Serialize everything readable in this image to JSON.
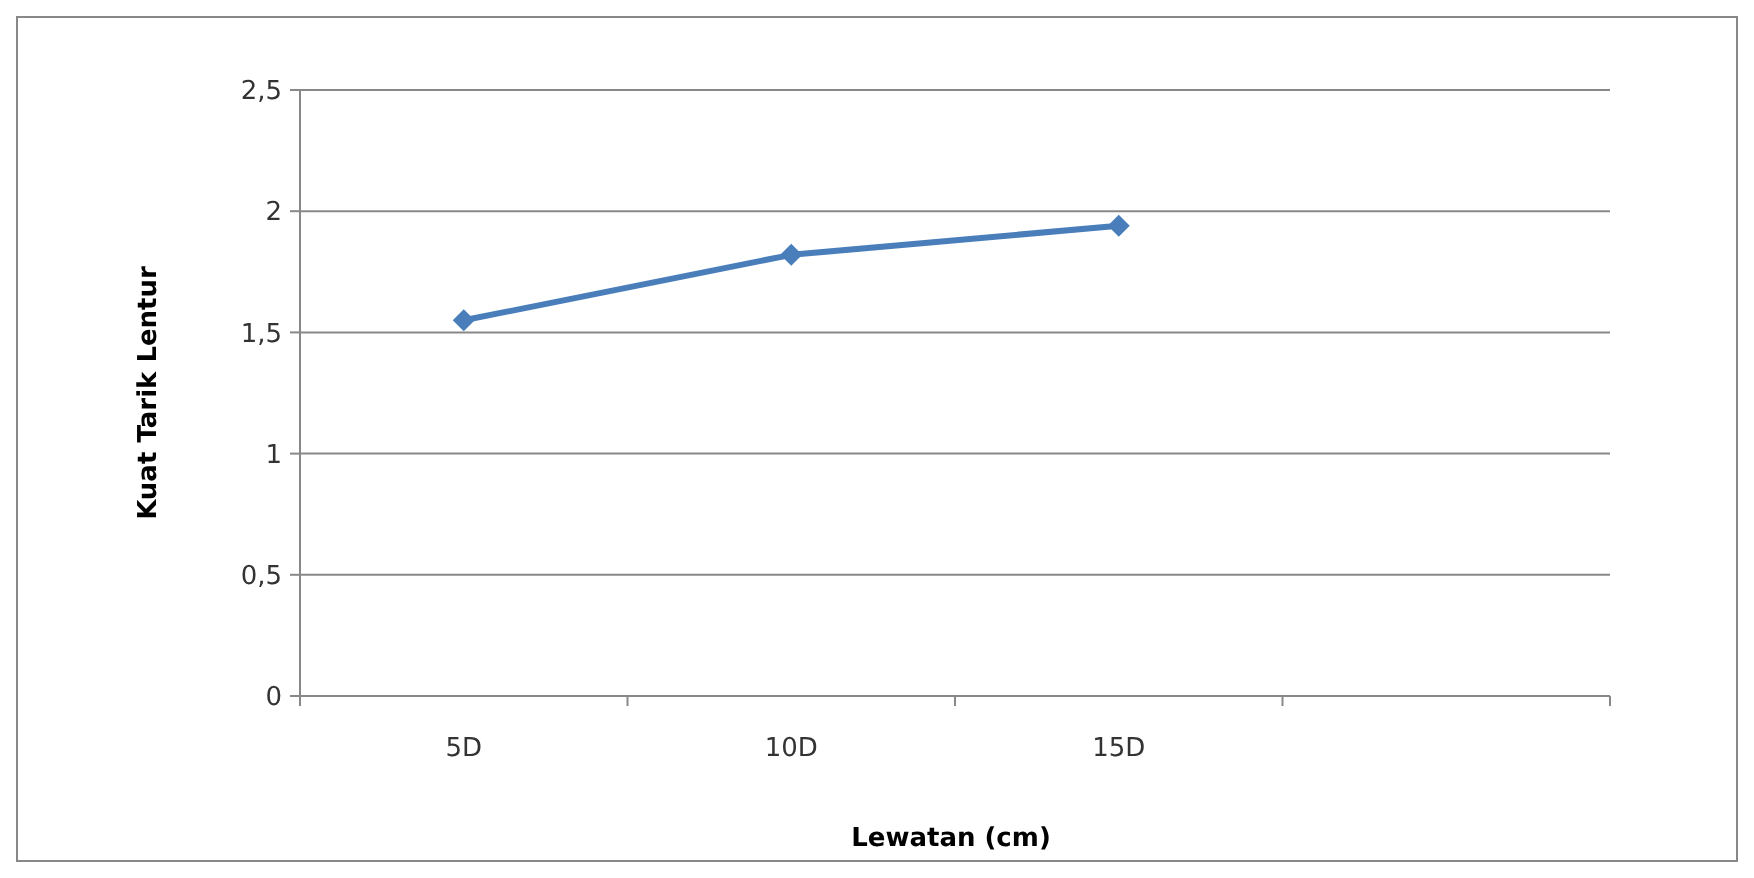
{
  "chart_data": {
    "type": "line",
    "xlabel": "Lewatan (cm)",
    "ylabel": "Kuat Tarik Lentur",
    "categories": [
      "5D",
      "10D",
      "15D",
      null
    ],
    "series": [
      {
        "color": "#4a7ebb",
        "values": [
          1.55,
          1.82,
          1.94,
          null
        ]
      }
    ],
    "ylim": [
      0,
      2.5
    ],
    "yticks": [
      0,
      {
        "value": 0.5,
        "label": "0,5"
      },
      1,
      {
        "value": 1.5,
        "label": "1,5"
      },
      2,
      {
        "value": 2.5,
        "label": "2,5"
      }
    ],
    "grid": "y",
    "marker": "diamond",
    "line_style": "solid"
  }
}
